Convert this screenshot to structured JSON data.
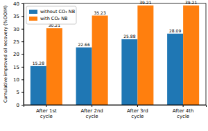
{
  "chart_data": {
    "type": "bar",
    "y_label": "Cumulative improved oil recovery (%OOIM)",
    "categories": [
      "After 1st cycle",
      "After 2nd cycle",
      "After 3rd cycle",
      "After 4th cycle"
    ],
    "series": [
      {
        "name": "without CO₂ NB",
        "color": "#1f77b4",
        "values": [
          15.28,
          22.66,
          25.88,
          28.09
        ]
      },
      {
        "name": "with CO₂ NB",
        "color": "#ff7f0e",
        "values": [
          30.21,
          35.23,
          39.21,
          39.21
        ]
      }
    ],
    "ylim": [
      0,
      40
    ],
    "yticks": [
      0,
      5,
      10,
      15,
      20,
      25,
      30,
      35,
      40
    ],
    "grid": false,
    "legend": "upper left",
    "data_labels": true
  }
}
